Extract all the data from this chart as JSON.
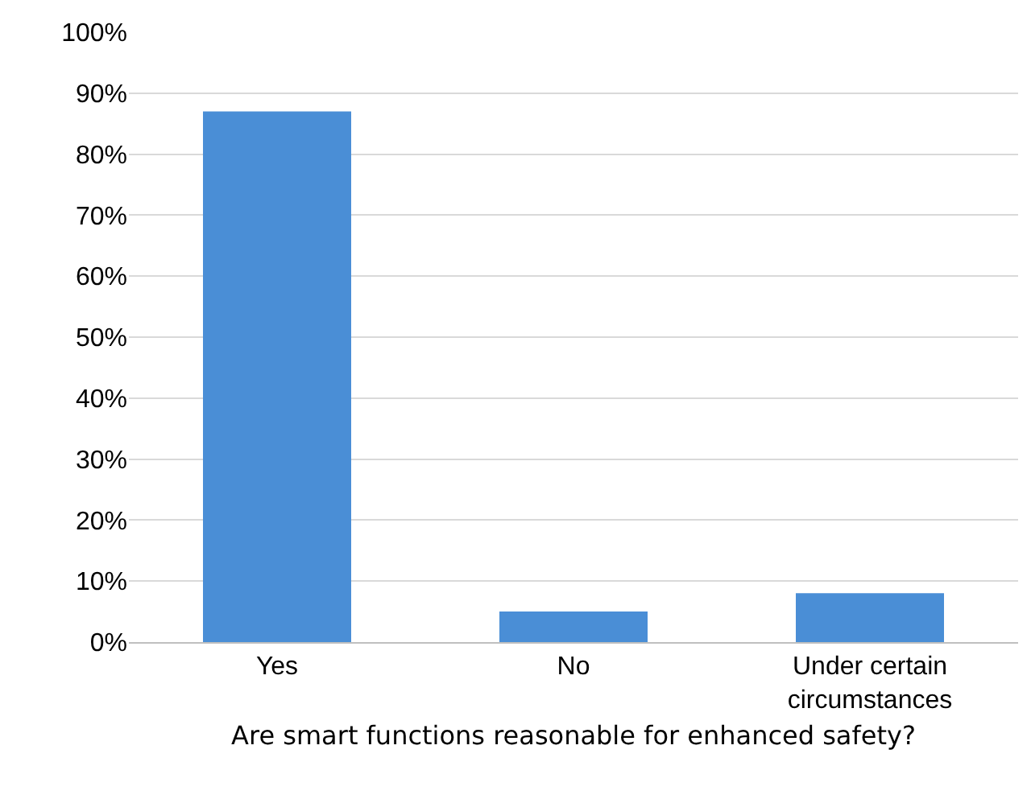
{
  "chart_data": {
    "type": "bar",
    "xlabel": "Are smart functions reasonable for enhanced safety?",
    "categories": [
      "Yes",
      "No",
      "Under certain circumstances"
    ],
    "values": [
      87,
      5,
      8
    ],
    "color": "#4a8ed6",
    "ylim": [
      0,
      100
    ],
    "yticks": [
      {
        "value": 0,
        "label": "0%"
      },
      {
        "value": 10,
        "label": "10%"
      },
      {
        "value": 20,
        "label": "20%"
      },
      {
        "value": 30,
        "label": "30%"
      },
      {
        "value": 40,
        "label": "40%"
      },
      {
        "value": 50,
        "label": "50%"
      },
      {
        "value": 60,
        "label": "60%"
      },
      {
        "value": 70,
        "label": "70%"
      },
      {
        "value": 80,
        "label": "80%"
      },
      {
        "value": 90,
        "label": "90%"
      },
      {
        "value": 100,
        "label": "100%"
      }
    ],
    "grid": "y"
  }
}
